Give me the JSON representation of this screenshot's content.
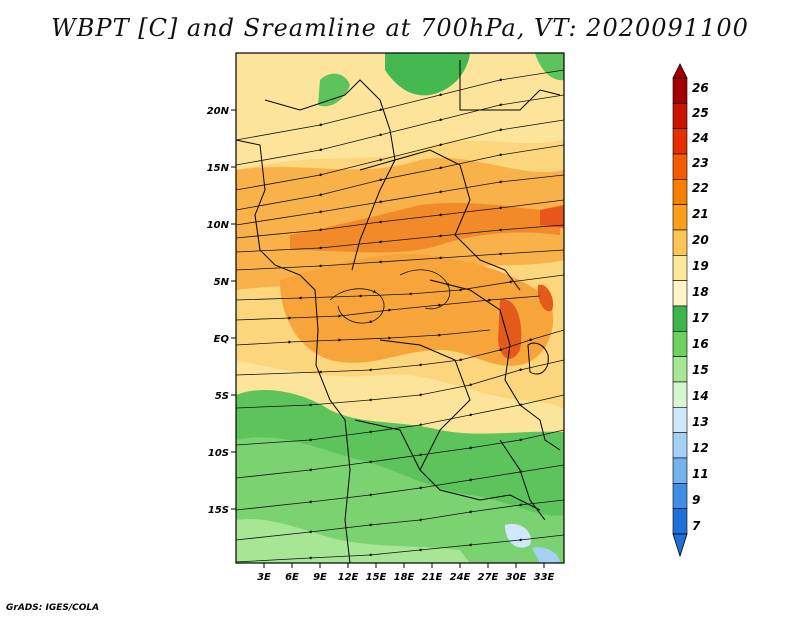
{
  "title": "WBPT [C] and Sreamline at 700hPa, VT: 2020091100",
  "footer": "GrADS: IGES/COLA",
  "map": {
    "region": "Central/East Africa",
    "lon_range": [
      0,
      35
    ],
    "lat_range": [
      -20,
      25
    ],
    "lat_ticks": [
      "20N",
      "15N",
      "10N",
      "5N",
      "EQ",
      "5S",
      "10S",
      "15S"
    ],
    "lon_ticks": [
      "3E",
      "6E",
      "9E",
      "12E",
      "15E",
      "18E",
      "21E",
      "24E",
      "27E",
      "30E",
      "33E"
    ],
    "field": "wet-bulb potential temperature",
    "overlay": "streamlines with arrows",
    "flow_pattern": "easterly flow across the Sahel with convergence near the equator"
  },
  "colorbar": {
    "levels": [
      "26",
      "25",
      "24",
      "23",
      "22",
      "21",
      "20",
      "19",
      "18",
      "17",
      "16",
      "15",
      "14",
      "13",
      "12",
      "11",
      "9",
      "7"
    ],
    "colors": [
      "#a50000",
      "#c81400",
      "#e62d00",
      "#f55a00",
      "#f77f00",
      "#f9a01b",
      "#fbc558",
      "#fde79a",
      "#fff5c8",
      "#3cb44b",
      "#6dd15f",
      "#a6e695",
      "#d8f5d2",
      "#cfe8fa",
      "#a5d0f5",
      "#73b2ee",
      "#3f8ee3",
      "#1f6fd8"
    ]
  }
}
